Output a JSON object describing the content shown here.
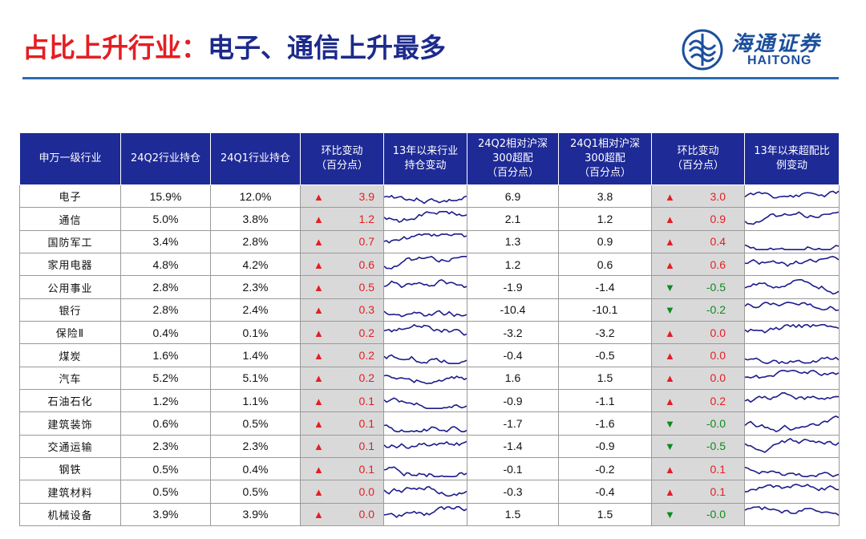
{
  "header": {
    "title_red": "占比上升行业：",
    "title_blue": "电子、通信上升最多",
    "logo_cn": "海通证券",
    "logo_en": "HAITONG"
  },
  "colors": {
    "up": "#e31e24",
    "down": "#0e8a1e",
    "header_bg": "#1e2a96",
    "line": "#1c1c8c"
  },
  "table": {
    "columns": [
      "申万一级行业",
      "24Q2行业持仓",
      "24Q1行业持仓",
      "环比变动\n（百分点）",
      "13年以来行业\n持仓变动",
      "24Q2相对沪深\n300超配\n（百分点）",
      "24Q1相对沪深\n300超配\n（百分点）",
      "环比变动\n（百分点）",
      "13年以来超配比\n例变动"
    ],
    "rows": [
      {
        "industry": "电子",
        "q2": "15.9%",
        "q1": "12.0%",
        "chg_dir": "up",
        "chg": "3.9",
        "ow_q2": "6.9",
        "ow_q1": "3.8",
        "ow_dir": "up",
        "ow_chg": "3.0"
      },
      {
        "industry": "通信",
        "q2": "5.0%",
        "q1": "3.8%",
        "chg_dir": "up",
        "chg": "1.2",
        "ow_q2": "2.1",
        "ow_q1": "1.2",
        "ow_dir": "up",
        "ow_chg": "0.9"
      },
      {
        "industry": "国防军工",
        "q2": "3.4%",
        "q1": "2.8%",
        "chg_dir": "up",
        "chg": "0.7",
        "ow_q2": "1.3",
        "ow_q1": "0.9",
        "ow_dir": "up",
        "ow_chg": "0.4"
      },
      {
        "industry": "家用电器",
        "q2": "4.8%",
        "q1": "4.2%",
        "chg_dir": "up",
        "chg": "0.6",
        "ow_q2": "1.2",
        "ow_q1": "0.6",
        "ow_dir": "up",
        "ow_chg": "0.6"
      },
      {
        "industry": "公用事业",
        "q2": "2.8%",
        "q1": "2.3%",
        "chg_dir": "up",
        "chg": "0.5",
        "ow_q2": "-1.9",
        "ow_q1": "-1.4",
        "ow_dir": "down",
        "ow_chg": "-0.5"
      },
      {
        "industry": "银行",
        "q2": "2.8%",
        "q1": "2.4%",
        "chg_dir": "up",
        "chg": "0.3",
        "ow_q2": "-10.4",
        "ow_q1": "-10.1",
        "ow_dir": "down",
        "ow_chg": "-0.2"
      },
      {
        "industry": "保险Ⅱ",
        "q2": "0.4%",
        "q1": "0.1%",
        "chg_dir": "up",
        "chg": "0.2",
        "ow_q2": "-3.2",
        "ow_q1": "-3.2",
        "ow_dir": "up",
        "ow_chg": "0.0"
      },
      {
        "industry": "煤炭",
        "q2": "1.6%",
        "q1": "1.4%",
        "chg_dir": "up",
        "chg": "0.2",
        "ow_q2": "-0.4",
        "ow_q1": "-0.5",
        "ow_dir": "up",
        "ow_chg": "0.0"
      },
      {
        "industry": "汽车",
        "q2": "5.2%",
        "q1": "5.1%",
        "chg_dir": "up",
        "chg": "0.2",
        "ow_q2": "1.6",
        "ow_q1": "1.5",
        "ow_dir": "up",
        "ow_chg": "0.0"
      },
      {
        "industry": "石油石化",
        "q2": "1.2%",
        "q1": "1.1%",
        "chg_dir": "up",
        "chg": "0.1",
        "ow_q2": "-0.9",
        "ow_q1": "-1.1",
        "ow_dir": "up",
        "ow_chg": "0.2"
      },
      {
        "industry": "建筑装饰",
        "q2": "0.6%",
        "q1": "0.5%",
        "chg_dir": "up",
        "chg": "0.1",
        "ow_q2": "-1.7",
        "ow_q1": "-1.6",
        "ow_dir": "down",
        "ow_chg": "-0.0"
      },
      {
        "industry": "交通运输",
        "q2": "2.3%",
        "q1": "2.3%",
        "chg_dir": "up",
        "chg": "0.1",
        "ow_q2": "-1.4",
        "ow_q1": "-0.9",
        "ow_dir": "down",
        "ow_chg": "-0.5"
      },
      {
        "industry": "钢铁",
        "q2": "0.5%",
        "q1": "0.4%",
        "chg_dir": "up",
        "chg": "0.1",
        "ow_q2": "-0.1",
        "ow_q1": "-0.2",
        "ow_dir": "up",
        "ow_chg": "0.1"
      },
      {
        "industry": "建筑材料",
        "q2": "0.5%",
        "q1": "0.5%",
        "chg_dir": "up",
        "chg": "0.0",
        "ow_q2": "-0.3",
        "ow_q1": "-0.4",
        "ow_dir": "up",
        "ow_chg": "0.1"
      },
      {
        "industry": "机械设备",
        "q2": "3.9%",
        "q1": "3.9%",
        "chg_dir": "up",
        "chg": "0.0",
        "ow_q2": "1.5",
        "ow_q1": "1.5",
        "ow_dir": "down",
        "ow_chg": "-0.0"
      }
    ]
  }
}
